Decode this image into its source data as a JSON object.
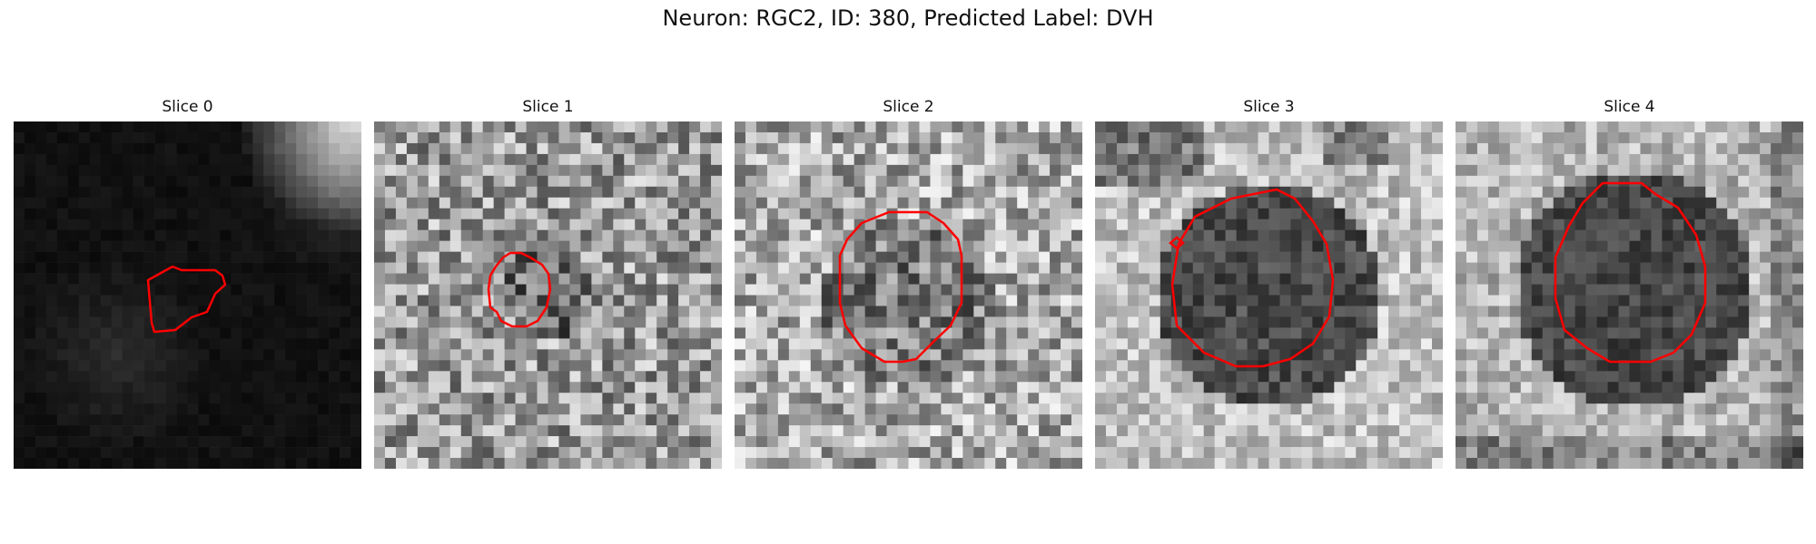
{
  "figure": {
    "title": "Neuron: RGC2, ID: 380, Predicted Label: DVH"
  },
  "colors": {
    "contour": "#ff0000",
    "background": "#ffffff"
  },
  "slices": [
    {
      "title": "Slice 0"
    },
    {
      "title": "Slice 1"
    },
    {
      "title": "Slice 2"
    },
    {
      "title": "Slice 3"
    },
    {
      "title": "Slice 4"
    }
  ]
}
